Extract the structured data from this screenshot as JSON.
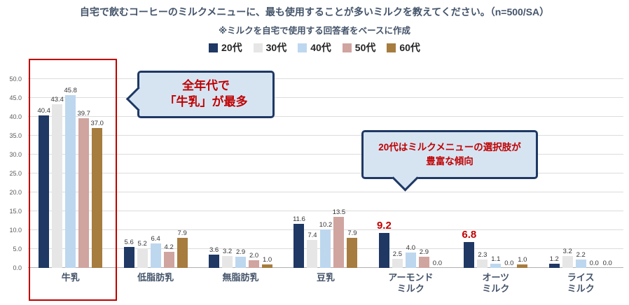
{
  "chart_data": {
    "type": "bar",
    "title": "自宅で飲むコーヒーのミルクメニューに、最も使用することが多いミルクを教えてください。（n=500/SA）",
    "subtitle": "※ミルクを自宅で使用する回答者をベースに作成",
    "categories": [
      "牛乳",
      "低脂肪乳",
      "無脂肪乳",
      "豆乳",
      "アーモンド\nミルク",
      "オーツ\nミルク",
      "ライス\nミルク"
    ],
    "series": [
      {
        "name": "20代",
        "color": "#1f3864",
        "values": [
          40.4,
          5.6,
          3.6,
          11.6,
          9.2,
          6.8,
          1.2
        ]
      },
      {
        "name": "30代",
        "color": "#e7e6e6",
        "values": [
          43.4,
          5.2,
          3.2,
          7.4,
          2.5,
          2.3,
          3.2
        ]
      },
      {
        "name": "40代",
        "color": "#bdd7ee",
        "values": [
          45.8,
          6.4,
          2.9,
          10.2,
          4.0,
          1.1,
          2.2
        ]
      },
      {
        "name": "50代",
        "color": "#d0a49f",
        "values": [
          39.7,
          4.2,
          2.0,
          13.5,
          2.9,
          0.0,
          0.0
        ]
      },
      {
        "name": "60代",
        "color": "#a67c3f",
        "values": [
          37.0,
          7.9,
          1.0,
          7.9,
          0.0,
          1.0,
          0.0
        ]
      }
    ],
    "ylim": [
      0,
      50
    ],
    "ytick_labels": [
      "0.0",
      "5.0",
      "10.0",
      "15.0",
      "20.0",
      "25.0",
      "30.0",
      "35.0",
      "40.0",
      "45.0",
      "50.0"
    ],
    "grid": "horizontal",
    "legend_position": "top",
    "highlights": [
      {
        "category": 4,
        "series": 0
      },
      {
        "category": 5,
        "series": 0
      }
    ],
    "highlight_color": "#c00000"
  },
  "annotations": {
    "milk_bubble_lines": [
      "全年代で",
      "「牛乳」が最多"
    ],
    "age20_bubble_lines": [
      "20代はミルクメニューの選択肢が",
      "豊富な傾向"
    ],
    "highlight_box_color": "#c00000"
  }
}
